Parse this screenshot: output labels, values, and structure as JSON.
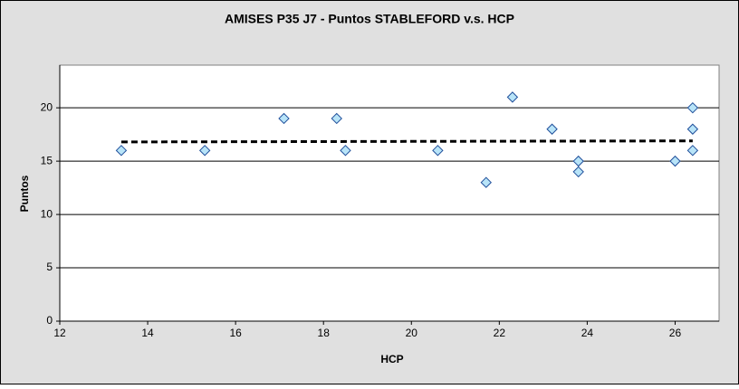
{
  "chart_data": {
    "type": "scatter",
    "title": "AMISES P35 J7 - Puntos STABLEFORD v.s. HCP",
    "x_label": "HCP",
    "y_label": "Puntos",
    "series": [
      {
        "x": [
          13.4,
          15.3,
          17.1,
          18.3,
          18.5,
          20.6,
          21.7,
          22.3,
          23.2,
          23.8,
          23.8,
          26.0,
          26.4,
          26.4,
          26.4
        ],
        "values": [
          16,
          16,
          19,
          19,
          16,
          16,
          13,
          21,
          18,
          15,
          14,
          15,
          20,
          18,
          16
        ],
        "color": "#b8e4f8",
        "stroke": "#1f4e9a"
      }
    ],
    "trendline": {
      "x": [
        13.4,
        26.4
      ],
      "values": [
        16.8,
        16.9
      ],
      "color": "#000000"
    },
    "xlim": [
      12,
      27
    ],
    "xticks": [
      12,
      14,
      16,
      18,
      20,
      22,
      24,
      26
    ],
    "ylim": [
      0,
      24
    ],
    "yticks": [
      0,
      5,
      10,
      15,
      20
    ],
    "grid": true
  }
}
